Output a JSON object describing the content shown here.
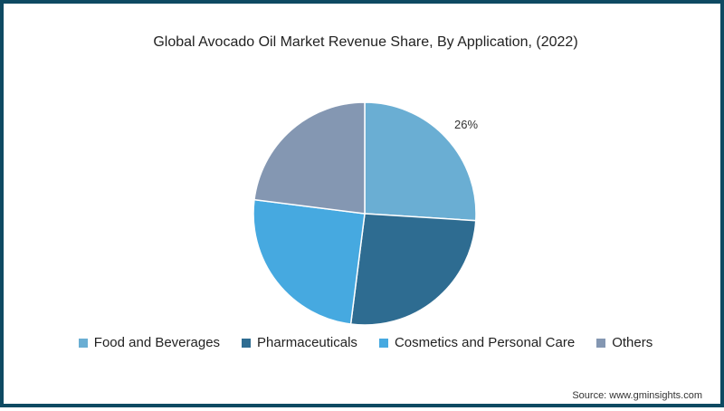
{
  "chart_data": {
    "type": "pie",
    "title": "Global Avocado Oil Market Revenue Share, By Application, (2022)",
    "categories": [
      "Food and Beverages",
      "Pharmaceuticals",
      "Cosmetics and Personal Care",
      "Others"
    ],
    "values": [
      26,
      26,
      25,
      23
    ],
    "colors": [
      "#6aaed3",
      "#2e6c91",
      "#46a9e0",
      "#8497b2"
    ],
    "data_labels": [
      {
        "category": "Food and Beverages",
        "text": "26%"
      }
    ],
    "legend_position": "bottom",
    "start_angle": "12 o'clock, clockwise"
  },
  "title": "Global Avocado Oil Market Revenue Share, By Application, (2022)",
  "label_food": "26%",
  "legend": [
    {
      "label": "Food and Beverages",
      "color": "#6aaed3"
    },
    {
      "label": "Pharmaceuticals",
      "color": "#2e6c91"
    },
    {
      "label": "Cosmetics and Personal Care",
      "color": "#46a9e0"
    },
    {
      "label": "Others",
      "color": "#8497b2"
    }
  ],
  "source": "Source: www.gminsights.com",
  "frame_color": "#0e4a62"
}
